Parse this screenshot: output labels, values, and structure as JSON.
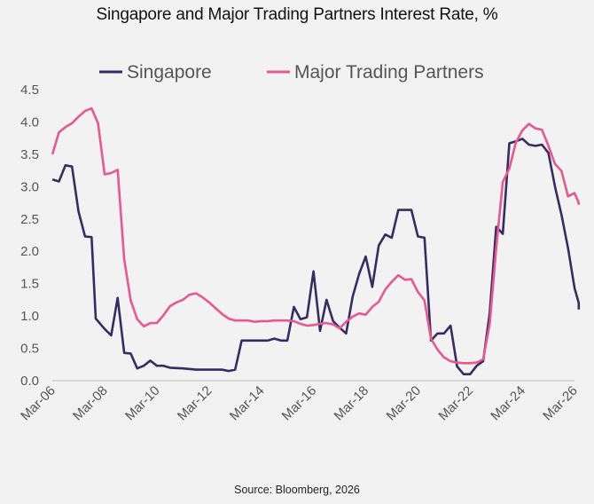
{
  "title": "Singapore and Major Trading Partners Interest Rate, %",
  "source": "Source: Bloomberg, 2026",
  "chart_data": {
    "type": "line",
    "title": "Singapore and Major Trading Partners Interest Rate, %",
    "xlabel": "",
    "ylabel": "",
    "ylim": [
      0,
      4.5
    ],
    "xlim": [
      2006.167,
      2026.167
    ],
    "yticks": [
      "0.0",
      "0.5",
      "1.0",
      "1.5",
      "2.0",
      "2.5",
      "3.0",
      "3.5",
      "4.0",
      "4.5"
    ],
    "xticks": [
      "Mar-06",
      "Mar-08",
      "Mar-10",
      "Mar-12",
      "Mar-14",
      "Mar-16",
      "Mar-18",
      "Mar-20",
      "Mar-22",
      "Mar-24",
      "Mar-26"
    ],
    "legend": "top",
    "grid": false,
    "series": [
      {
        "name": "Singapore",
        "color": "#362c63",
        "points": [
          [
            2006.17,
            3.11
          ],
          [
            2006.42,
            3.08
          ],
          [
            2006.67,
            3.33
          ],
          [
            2006.92,
            3.31
          ],
          [
            2007.17,
            2.62
          ],
          [
            2007.42,
            2.23
          ],
          [
            2007.67,
            2.22
          ],
          [
            2007.83,
            0.96
          ],
          [
            2008.17,
            0.8
          ],
          [
            2008.42,
            0.7
          ],
          [
            2008.67,
            1.28
          ],
          [
            2008.92,
            0.43
          ],
          [
            2009.17,
            0.42
          ],
          [
            2009.42,
            0.19
          ],
          [
            2009.67,
            0.23
          ],
          [
            2009.92,
            0.31
          ],
          [
            2010.17,
            0.23
          ],
          [
            2010.42,
            0.23
          ],
          [
            2010.67,
            0.2
          ],
          [
            2011.17,
            0.19
          ],
          [
            2011.67,
            0.17
          ],
          [
            2012.17,
            0.17
          ],
          [
            2012.67,
            0.17
          ],
          [
            2012.92,
            0.15
          ],
          [
            2013.17,
            0.17
          ],
          [
            2013.42,
            0.62
          ],
          [
            2013.92,
            0.62
          ],
          [
            2014.42,
            0.62
          ],
          [
            2014.67,
            0.65
          ],
          [
            2014.92,
            0.62
          ],
          [
            2015.17,
            0.62
          ],
          [
            2015.42,
            1.14
          ],
          [
            2015.67,
            0.95
          ],
          [
            2015.92,
            0.98
          ],
          [
            2016.17,
            1.69
          ],
          [
            2016.42,
            0.77
          ],
          [
            2016.67,
            1.25
          ],
          [
            2016.92,
            0.92
          ],
          [
            2017.17,
            0.82
          ],
          [
            2017.42,
            0.73
          ],
          [
            2017.67,
            1.3
          ],
          [
            2017.92,
            1.65
          ],
          [
            2018.17,
            1.92
          ],
          [
            2018.42,
            1.45
          ],
          [
            2018.67,
            2.09
          ],
          [
            2018.92,
            2.26
          ],
          [
            2019.17,
            2.21
          ],
          [
            2019.42,
            2.64
          ],
          [
            2019.67,
            2.64
          ],
          [
            2019.92,
            2.64
          ],
          [
            2020.17,
            2.23
          ],
          [
            2020.42,
            2.21
          ],
          [
            2020.67,
            0.62
          ],
          [
            2020.92,
            0.73
          ],
          [
            2021.17,
            0.73
          ],
          [
            2021.42,
            0.85
          ],
          [
            2021.67,
            0.22
          ],
          [
            2021.92,
            0.1
          ],
          [
            2022.17,
            0.1
          ],
          [
            2022.42,
            0.23
          ],
          [
            2022.67,
            0.3
          ],
          [
            2022.92,
            1.05
          ],
          [
            2023.17,
            2.38
          ],
          [
            2023.42,
            2.27
          ],
          [
            2023.67,
            3.67
          ],
          [
            2023.92,
            3.7
          ],
          [
            2024.17,
            3.74
          ],
          [
            2024.42,
            3.65
          ],
          [
            2024.67,
            3.63
          ],
          [
            2024.92,
            3.65
          ],
          [
            2025.17,
            3.52
          ],
          [
            2025.42,
            3.0
          ],
          [
            2025.67,
            2.56
          ],
          [
            2025.92,
            2.05
          ],
          [
            2026.17,
            1.43
          ],
          [
            2026.42,
            1.2
          ],
          [
            2026.67,
            1.1
          ]
        ]
      },
      {
        "name": "Major Trading Partners",
        "color": "#e8588e",
        "points": [
          [
            2006.17,
            3.5
          ],
          [
            2006.42,
            3.84
          ],
          [
            2006.67,
            3.92
          ],
          [
            2006.92,
            3.98
          ],
          [
            2007.17,
            4.08
          ],
          [
            2007.42,
            4.17
          ],
          [
            2007.67,
            4.21
          ],
          [
            2007.92,
            3.98
          ],
          [
            2008.17,
            3.19
          ],
          [
            2008.42,
            3.21
          ],
          [
            2008.67,
            3.26
          ],
          [
            2008.92,
            1.88
          ],
          [
            2009.17,
            1.24
          ],
          [
            2009.42,
            0.95
          ],
          [
            2009.67,
            0.84
          ],
          [
            2009.92,
            0.89
          ],
          [
            2010.17,
            0.89
          ],
          [
            2010.42,
            1.01
          ],
          [
            2010.67,
            1.15
          ],
          [
            2010.92,
            1.21
          ],
          [
            2011.17,
            1.25
          ],
          [
            2011.42,
            1.33
          ],
          [
            2011.67,
            1.35
          ],
          [
            2011.92,
            1.29
          ],
          [
            2012.17,
            1.21
          ],
          [
            2012.42,
            1.12
          ],
          [
            2012.67,
            1.03
          ],
          [
            2012.92,
            0.96
          ],
          [
            2013.17,
            0.93
          ],
          [
            2013.42,
            0.93
          ],
          [
            2013.67,
            0.93
          ],
          [
            2013.92,
            0.91
          ],
          [
            2014.17,
            0.92
          ],
          [
            2014.42,
            0.92
          ],
          [
            2014.67,
            0.93
          ],
          [
            2014.92,
            0.93
          ],
          [
            2015.17,
            0.93
          ],
          [
            2015.42,
            0.92
          ],
          [
            2015.67,
            0.88
          ],
          [
            2015.92,
            0.85
          ],
          [
            2016.17,
            0.86
          ],
          [
            2016.42,
            0.88
          ],
          [
            2016.67,
            0.89
          ],
          [
            2016.92,
            0.87
          ],
          [
            2017.17,
            0.81
          ],
          [
            2017.42,
            0.91
          ],
          [
            2017.67,
            0.99
          ],
          [
            2017.92,
            1.04
          ],
          [
            2018.17,
            1.02
          ],
          [
            2018.42,
            1.14
          ],
          [
            2018.67,
            1.22
          ],
          [
            2018.92,
            1.41
          ],
          [
            2019.17,
            1.53
          ],
          [
            2019.42,
            1.63
          ],
          [
            2019.67,
            1.56
          ],
          [
            2019.92,
            1.57
          ],
          [
            2020.17,
            1.37
          ],
          [
            2020.42,
            1.24
          ],
          [
            2020.67,
            0.65
          ],
          [
            2020.92,
            0.48
          ],
          [
            2021.17,
            0.36
          ],
          [
            2021.42,
            0.3
          ],
          [
            2021.67,
            0.28
          ],
          [
            2021.92,
            0.27
          ],
          [
            2022.17,
            0.27
          ],
          [
            2022.42,
            0.28
          ],
          [
            2022.67,
            0.33
          ],
          [
            2022.92,
            0.88
          ],
          [
            2023.17,
            2.05
          ],
          [
            2023.42,
            3.07
          ],
          [
            2023.67,
            3.28
          ],
          [
            2023.92,
            3.68
          ],
          [
            2024.17,
            3.87
          ],
          [
            2024.42,
            3.97
          ],
          [
            2024.67,
            3.9
          ],
          [
            2024.92,
            3.88
          ],
          [
            2025.17,
            3.63
          ],
          [
            2025.42,
            3.35
          ],
          [
            2025.67,
            3.24
          ],
          [
            2025.92,
            2.85
          ],
          [
            2026.17,
            2.9
          ],
          [
            2026.42,
            2.75
          ],
          [
            2026.67,
            2.72
          ]
        ]
      }
    ]
  }
}
